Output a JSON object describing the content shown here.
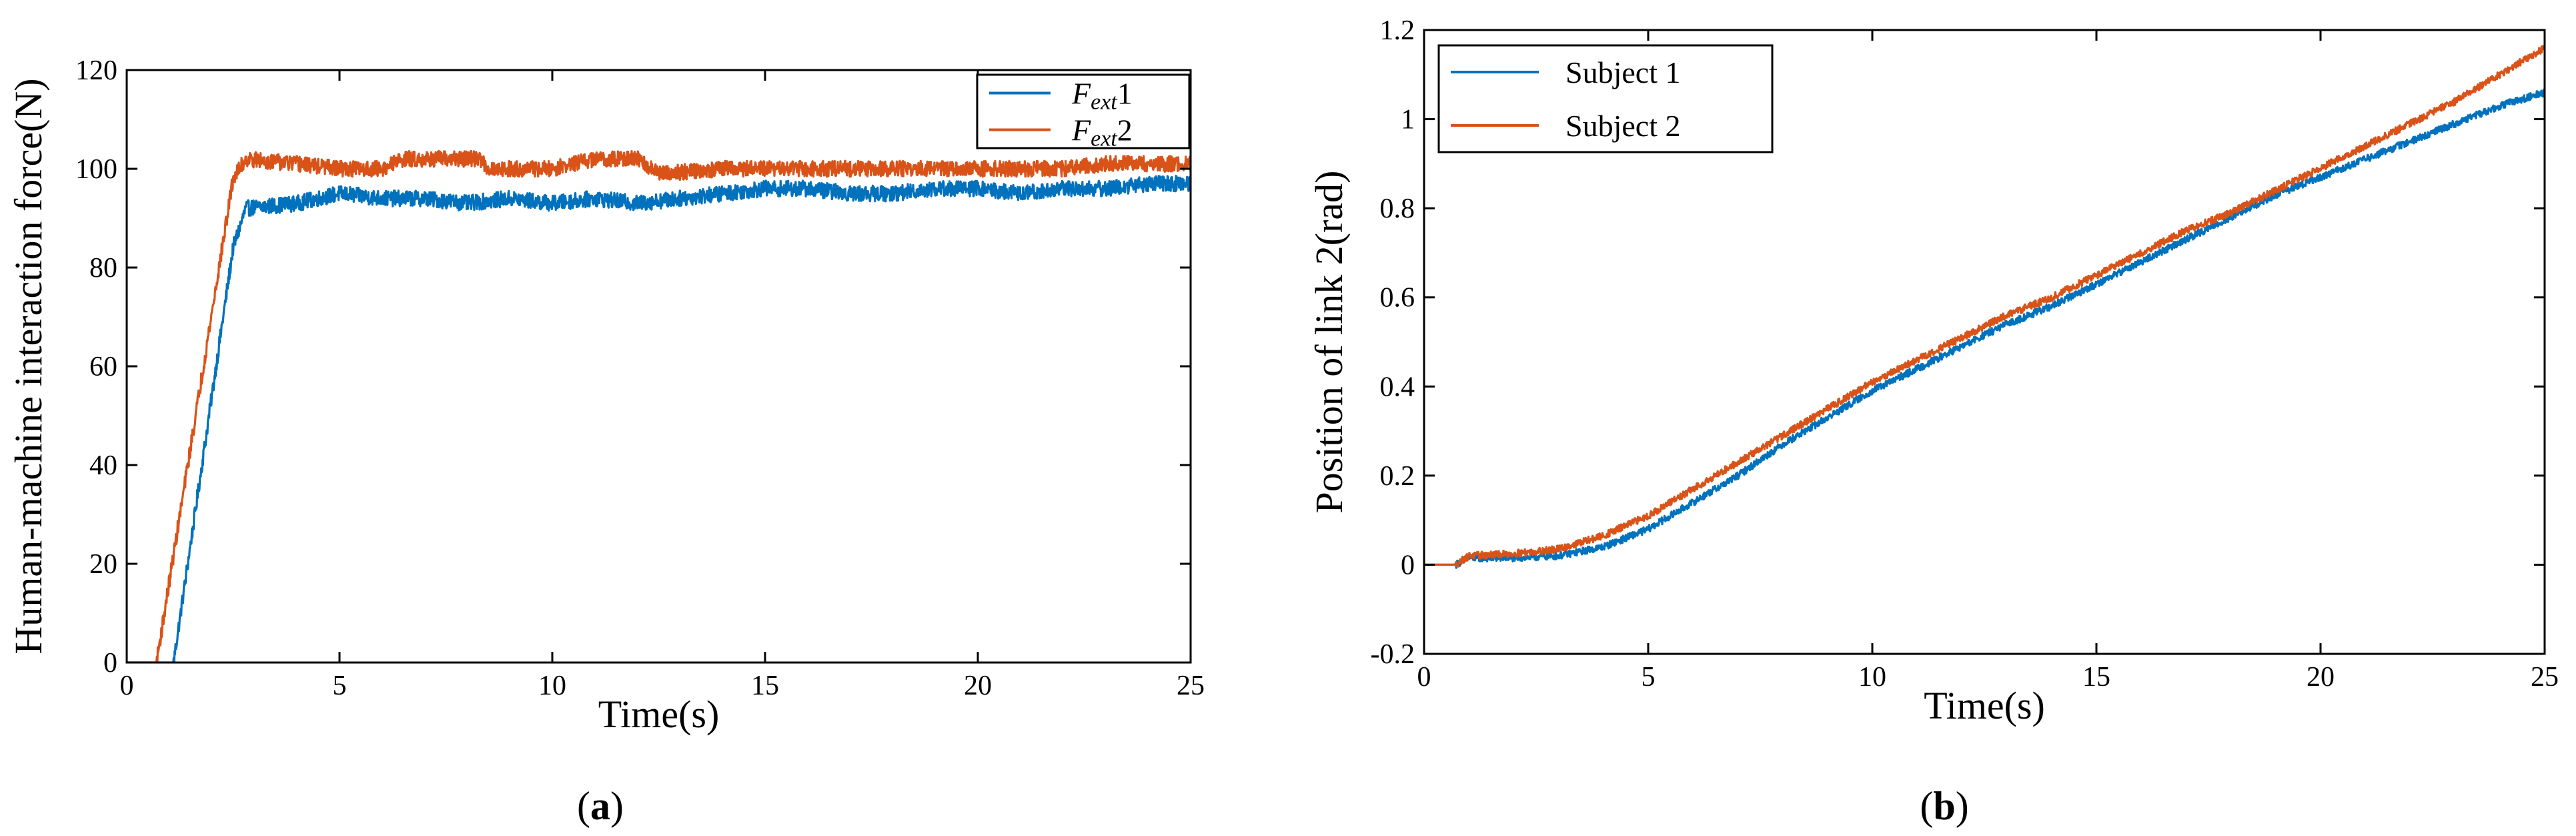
{
  "colors": {
    "blue": "#0072BD",
    "orange": "#D95319"
  },
  "chart_data": [
    {
      "type": "line",
      "caption": "(a)",
      "xlabel": "Time(s)",
      "ylabel": "Human-machine interaction force(N)",
      "xlim": [
        0,
        25
      ],
      "ylim": [
        0,
        120
      ],
      "xticks": [
        0,
        5,
        10,
        15,
        20,
        25
      ],
      "yticks": [
        0,
        20,
        40,
        60,
        80,
        100,
        120
      ],
      "grid": false,
      "legend_position": "top-right",
      "series": [
        {
          "name": "F_ext1",
          "legend_symbol": "F",
          "legend_sub": "ext",
          "legend_suffix": "1",
          "color": "#0072BD",
          "noise": 1.6,
          "x": [
            0,
            1.1,
            2.5,
            2.8,
            4,
            5,
            6,
            7,
            8,
            9,
            10,
            11,
            12,
            13,
            14,
            15,
            16,
            17,
            18,
            19,
            20,
            21,
            22,
            23,
            24,
            25
          ],
          "y": [
            0,
            0,
            84,
            92,
            93,
            95,
            94,
            94,
            93,
            94,
            93,
            94,
            93,
            94,
            95,
            96,
            96,
            95,
            95,
            96,
            96,
            95,
            96,
            96,
            97,
            97
          ]
        },
        {
          "name": "F_ext2",
          "legend_symbol": "F",
          "legend_sub": "ext",
          "legend_suffix": "2",
          "color": "#D95319",
          "noise": 1.6,
          "x": [
            0,
            0.7,
            2.5,
            2.8,
            4,
            5,
            6,
            6.5,
            8.3,
            8.5,
            10,
            11,
            12,
            12.5,
            14,
            15,
            16,
            17,
            18,
            19,
            20,
            21,
            22,
            23,
            24,
            25
          ],
          "y": [
            0,
            0,
            98,
            102,
            101,
            100,
            100,
            102,
            102,
            100,
            100,
            102,
            102,
            99,
            100,
            100,
            100,
            100,
            100,
            100,
            100,
            100,
            100,
            101,
            101,
            101
          ]
        }
      ]
    },
    {
      "type": "line",
      "caption": "(b)",
      "xlabel": "Time(s)",
      "ylabel": "Position of link 2(rad)",
      "xlim": [
        0,
        25
      ],
      "ylim": [
        -0.2,
        1.2
      ],
      "xticks": [
        0,
        5,
        10,
        15,
        20,
        25
      ],
      "yticks": [
        -0.2,
        0,
        0.2,
        0.4,
        0.6,
        0.8,
        1,
        1.2
      ],
      "ytick_labels": [
        "-0.2",
        "0",
        "0.2",
        "0.4",
        "0.6",
        "0.8",
        "1",
        "1.2"
      ],
      "grid": false,
      "legend_position": "top-left",
      "series": [
        {
          "name": "Subject 1",
          "color": "#0072BD",
          "noise": 0.008,
          "x": [
            0,
            0.7,
            1,
            2,
            3,
            4,
            5,
            6,
            7,
            8,
            9,
            10,
            11,
            12,
            13,
            14,
            15,
            16,
            17,
            18,
            19,
            20,
            21,
            22,
            23,
            24,
            25
          ],
          "y": [
            0,
            0,
            0.015,
            0.015,
            0.02,
            0.04,
            0.08,
            0.14,
            0.2,
            0.27,
            0.33,
            0.39,
            0.44,
            0.49,
            0.54,
            0.58,
            0.63,
            0.68,
            0.73,
            0.78,
            0.83,
            0.87,
            0.91,
            0.95,
            0.99,
            1.03,
            1.06
          ]
        },
        {
          "name": "Subject 2",
          "color": "#D95319",
          "noise": 0.008,
          "x": [
            0,
            0.7,
            1,
            2,
            3,
            4,
            5,
            6,
            7,
            8,
            9,
            10,
            11,
            12,
            13,
            14,
            15,
            16,
            17,
            18,
            19,
            20,
            21,
            22,
            23,
            24,
            25
          ],
          "y": [
            0,
            0,
            0.02,
            0.025,
            0.035,
            0.065,
            0.11,
            0.17,
            0.23,
            0.29,
            0.35,
            0.41,
            0.46,
            0.51,
            0.56,
            0.6,
            0.65,
            0.7,
            0.75,
            0.79,
            0.84,
            0.89,
            0.94,
            0.99,
            1.04,
            1.1,
            1.16
          ]
        }
      ]
    }
  ]
}
